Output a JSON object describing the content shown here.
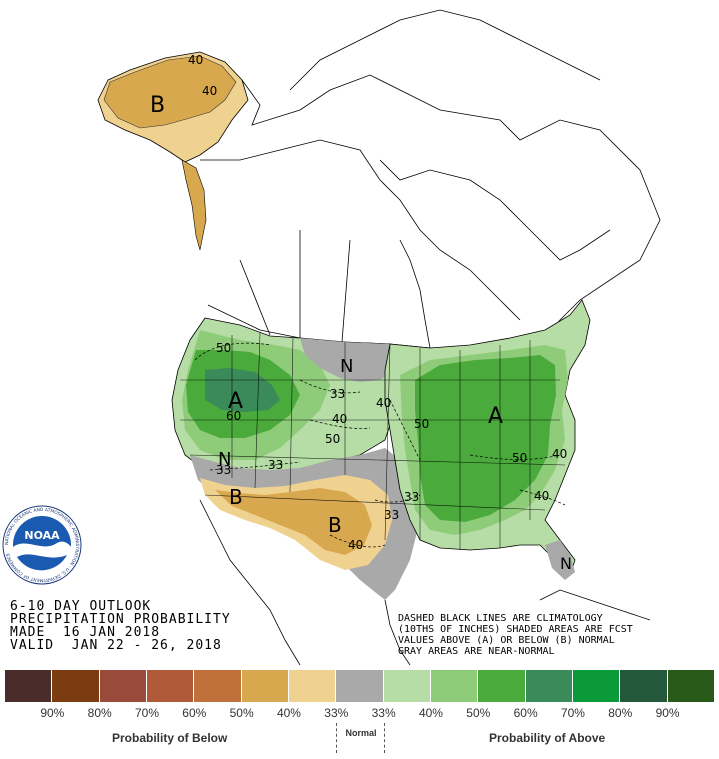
{
  "product": {
    "title_line1": "6-10 DAY OUTLOOK",
    "title_line2": "PRECIPITATION PROBABILITY",
    "made": "MADE  16 JAN 2018",
    "valid": "VALID  JAN 22 - 26, 2018"
  },
  "notes": [
    "DASHED BLACK LINES ARE CLIMATOLOGY",
    "(10THS OF INCHES) SHADED AREAS ARE FCST",
    "VALUES ABOVE (A) OR BELOW (B) NORMAL",
    "GRAY AREAS ARE NEAR-NORMAL"
  ],
  "logo": {
    "text": "NOAA",
    "ring_text": "NATIONAL OCEANIC AND ATMOSPHERIC ADMINISTRATION · U.S. DEPARTMENT OF COMMERCE"
  },
  "map_labels": {
    "alaska_b": "B",
    "alaska_40a": "40",
    "alaska_40b": "40",
    "west_50": "50",
    "west_a": "A",
    "west_60": "60",
    "plains_n": "N",
    "plains_33": "33",
    "plains_40": "40",
    "plains_50": "50",
    "sw_n": "N",
    "sw_33a": "33",
    "sw_33b": "33",
    "sw_b": "B",
    "tx_b": "B",
    "tx_40": "40",
    "tx_33": "33",
    "tx_33b": "33",
    "mw_40": "40",
    "mw_50": "50",
    "east_a": "A",
    "east_50": "50",
    "east_40": "40",
    "se_40": "40",
    "fl_n": "N"
  },
  "legend": {
    "colors": [
      "#4a2c2a",
      "#7a3c10",
      "#9a4a3a",
      "#b05a3a",
      "#c0703a",
      "#d8a84e",
      "#f0d290",
      "#a9a9a9",
      "#b5dda5",
      "#8fcc7a",
      "#4aaa3c",
      "#3a8a5a",
      "#0a9a3a",
      "#24583a",
      "#2a5a1a"
    ],
    "percents": [
      "90%",
      "80%",
      "70%",
      "60%",
      "50%",
      "40%",
      "33%",
      "33%",
      "40%",
      "50%",
      "60%",
      "70%",
      "80%",
      "90%"
    ],
    "below_label": "Probability of Below",
    "normal_label": "Normal",
    "above_label": "Probability of Above"
  }
}
